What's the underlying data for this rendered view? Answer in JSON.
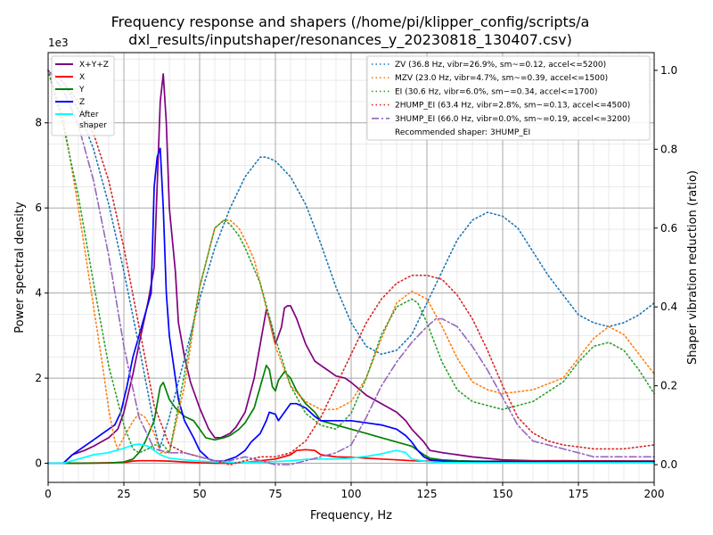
{
  "chart_data": {
    "type": "line",
    "title": "Frequency response and shapers (/home/pi/klipper_config/scripts/a\ndxl_results/inputshaper/resonances_y_20230818_130407.csv)",
    "title_lines": [
      "Frequency response and shapers (/home/pi/klipper_config/scripts/a",
      "dxl_results/inputshaper/resonances_y_20230818_130407.csv)"
    ],
    "xlabel": "Frequency, Hz",
    "ylabel": "Power spectral density",
    "y2label": "Shaper vibration reduction (ratio)",
    "y_offset_text": "1e3",
    "xlim": [
      0,
      200
    ],
    "ylim": [
      -450,
      9650
    ],
    "y2lim": [
      -0.045,
      1.045
    ],
    "x_ticks": [
      0,
      25,
      50,
      75,
      100,
      125,
      150,
      175,
      200
    ],
    "y_ticks": [
      0,
      2000,
      4000,
      6000,
      8000
    ],
    "y_tick_labels": [
      "0",
      "2",
      "4",
      "6",
      "8"
    ],
    "y2_ticks": [
      0.0,
      0.2,
      0.4,
      0.6,
      0.8,
      1.0
    ],
    "y2_tick_labels": [
      "0.0",
      "0.2",
      "0.4",
      "0.6",
      "0.8",
      "1.0"
    ],
    "grid": true,
    "legend_left": {
      "placement": "top-left",
      "entries": [
        {
          "label": "X+Y+Z",
          "color": "#800080"
        },
        {
          "label": "X",
          "color": "#ff0000"
        },
        {
          "label": "Y",
          "color": "#008000"
        },
        {
          "label": "Z",
          "color": "#0000ff"
        },
        {
          "label": "After\nshaper",
          "label_lines": [
            "After",
            "shaper"
          ],
          "color": "#00ffff"
        }
      ]
    },
    "legend_right": {
      "placement": "top-right",
      "entries": [
        {
          "label": "ZV (36.8 Hz, vibr=26.9%, sm~=0.12, accel<=5200)",
          "color": "#1f77b4",
          "dash": "dotted"
        },
        {
          "label": "MZV (23.0 Hz, vibr=4.7%, sm~=0.39, accel<=1500)",
          "color": "#ff7f0e",
          "dash": "dotted"
        },
        {
          "label": "EI (30.6 Hz, vibr=6.0%, sm~=0.34, accel<=1700)",
          "color": "#2ca02c",
          "dash": "dotted"
        },
        {
          "label": "2HUMP_EI (63.4 Hz, vibr=2.8%, sm~=0.13, accel<=4500)",
          "color": "#d62728",
          "dash": "dotted"
        },
        {
          "label": "3HUMP_EI (66.0 Hz, vibr=0.0%, sm~=0.19, accel<=3200)",
          "color": "#9467bd",
          "dash": "dashdot"
        },
        {
          "label": "Recommended shaper: 3HUMP_EI",
          "color": "",
          "dash": "none"
        }
      ]
    },
    "series": [
      {
        "name": "X+Y+Z",
        "color": "#800080",
        "axis": "left",
        "x": [
          0,
          5,
          8,
          12,
          15,
          20,
          23,
          25,
          28,
          30,
          33,
          35,
          37,
          38,
          39,
          40,
          42,
          43,
          45,
          47,
          50,
          53,
          55,
          57,
          60,
          62,
          65,
          68,
          70,
          72,
          73,
          75,
          77,
          78,
          79,
          80,
          82,
          85,
          88,
          90,
          92,
          95,
          98,
          100,
          105,
          110,
          115,
          118,
          120,
          122,
          124,
          126,
          130,
          135,
          140,
          150,
          160,
          170,
          180,
          190,
          200
        ],
        "y": [
          0,
          0,
          200,
          300,
          400,
          600,
          800,
          1200,
          2100,
          2800,
          3800,
          4600,
          8500,
          9150,
          8000,
          6000,
          4500,
          3300,
          2500,
          1900,
          1300,
          800,
          600,
          600,
          700,
          850,
          1200,
          2000,
          2800,
          3600,
          3400,
          2800,
          3200,
          3650,
          3700,
          3700,
          3400,
          2800,
          2400,
          2300,
          2200,
          2050,
          2000,
          1900,
          1600,
          1400,
          1200,
          1000,
          800,
          650,
          500,
          300,
          250,
          200,
          150,
          80,
          60,
          60,
          50,
          50,
          50
        ]
      },
      {
        "name": "X",
        "color": "#ff0000",
        "axis": "left",
        "x": [
          0,
          10,
          20,
          25,
          28,
          30,
          35,
          40,
          45,
          50,
          55,
          60,
          65,
          70,
          75,
          80,
          82,
          85,
          88,
          90,
          95,
          100,
          105,
          110,
          115,
          120,
          125,
          130,
          135,
          150,
          170,
          200
        ],
        "y": [
          0,
          0,
          10,
          20,
          50,
          60,
          60,
          50,
          30,
          10,
          0,
          0,
          20,
          60,
          100,
          200,
          300,
          320,
          300,
          200,
          150,
          140,
          120,
          100,
          80,
          60,
          50,
          40,
          40,
          50,
          60,
          50
        ]
      },
      {
        "name": "Y",
        "color": "#008000",
        "axis": "left",
        "x": [
          0,
          10,
          20,
          25,
          28,
          30,
          32,
          35,
          37,
          38,
          39,
          40,
          42,
          45,
          48,
          50,
          52,
          55,
          58,
          60,
          63,
          65,
          68,
          70,
          72,
          73,
          74,
          75,
          76,
          78,
          80,
          82,
          85,
          88,
          90,
          95,
          100,
          105,
          110,
          115,
          120,
          122,
          124,
          126,
          130,
          135,
          140,
          150,
          170,
          200
        ],
        "y": [
          0,
          0,
          5,
          30,
          100,
          250,
          500,
          1000,
          1800,
          1900,
          1700,
          1500,
          1300,
          1100,
          1000,
          800,
          600,
          550,
          600,
          650,
          800,
          950,
          1300,
          1800,
          2300,
          2200,
          1800,
          1700,
          1950,
          2150,
          2000,
          1700,
          1400,
          1200,
          1000,
          900,
          800,
          700,
          600,
          500,
          400,
          300,
          200,
          120,
          80,
          60,
          50,
          40,
          40,
          40
        ]
      },
      {
        "name": "Z",
        "color": "#0000ff",
        "axis": "left",
        "x": [
          0,
          5,
          8,
          12,
          15,
          18,
          20,
          22,
          24,
          26,
          28,
          30,
          32,
          34,
          35,
          36,
          37,
          38,
          39,
          40,
          41,
          42,
          43,
          45,
          48,
          50,
          53,
          55,
          58,
          60,
          62,
          65,
          67,
          70,
          72,
          73,
          75,
          76,
          78,
          80,
          82,
          85,
          88,
          90,
          95,
          100,
          105,
          110,
          115,
          118,
          120,
          122,
          124,
          126,
          130,
          135,
          140,
          150,
          160,
          170,
          180,
          190,
          200
        ],
        "y": [
          0,
          0,
          200,
          400,
          550,
          700,
          800,
          900,
          1200,
          1800,
          2500,
          3000,
          3500,
          4000,
          6500,
          7200,
          7400,
          6000,
          4000,
          3000,
          2500,
          2000,
          1500,
          1000,
          600,
          300,
          100,
          50,
          50,
          100,
          150,
          300,
          500,
          700,
          1000,
          1200,
          1150,
          1000,
          1200,
          1400,
          1400,
          1300,
          1100,
          1000,
          1000,
          1000,
          950,
          900,
          800,
          650,
          500,
          300,
          150,
          80,
          50,
          40,
          40,
          40,
          40,
          40,
          40,
          40,
          40
        ]
      },
      {
        "name": "After\nshaper",
        "color": "#00ffff",
        "axis": "left",
        "x": [
          0,
          5,
          10,
          15,
          20,
          25,
          28,
          30,
          33,
          35,
          37,
          40,
          45,
          50,
          55,
          60,
          65,
          70,
          75,
          80,
          85,
          90,
          95,
          100,
          105,
          110,
          113,
          115,
          118,
          120,
          125,
          130,
          140,
          160,
          200
        ],
        "y": [
          0,
          0,
          100,
          200,
          250,
          350,
          430,
          450,
          400,
          300,
          200,
          120,
          80,
          50,
          30,
          20,
          20,
          30,
          40,
          60,
          90,
          100,
          100,
          120,
          160,
          220,
          270,
          300,
          250,
          100,
          40,
          20,
          10,
          10,
          10
        ]
      },
      {
        "name": "ZV (36.8 Hz, vibr=26.9%, sm~=0.12, accel<=5200)",
        "color": "#1f77b4",
        "dash": "dotted",
        "axis": "right",
        "x": [
          0,
          5,
          10,
          15,
          20,
          25,
          30,
          35,
          36.8,
          40,
          45,
          50,
          55,
          60,
          65,
          70,
          72,
          75,
          80,
          85,
          90,
          95,
          100,
          105,
          110,
          115,
          120,
          125,
          130,
          135,
          140,
          145,
          150,
          155,
          160,
          165,
          170,
          175,
          180,
          185,
          190,
          195,
          200
        ],
        "y": [
          1.0,
          0.97,
          0.9,
          0.8,
          0.66,
          0.49,
          0.3,
          0.1,
          0.04,
          0.12,
          0.27,
          0.42,
          0.55,
          0.65,
          0.73,
          0.78,
          0.78,
          0.77,
          0.73,
          0.66,
          0.56,
          0.45,
          0.36,
          0.3,
          0.28,
          0.29,
          0.33,
          0.41,
          0.49,
          0.57,
          0.62,
          0.64,
          0.63,
          0.6,
          0.54,
          0.48,
          0.43,
          0.38,
          0.36,
          0.35,
          0.36,
          0.38,
          0.41
        ]
      },
      {
        "name": "MZV (23.0 Hz, vibr=4.7%, sm~=0.39, accel<=1500)",
        "color": "#ff7f0e",
        "dash": "dotted",
        "axis": "right",
        "x": [
          0,
          5,
          10,
          15,
          18,
          20,
          22,
          23,
          25,
          28,
          30,
          32,
          35,
          37,
          40,
          45,
          50,
          55,
          58,
          60,
          63,
          65,
          68,
          70,
          75,
          80,
          85,
          90,
          95,
          100,
          105,
          110,
          115,
          120,
          125,
          130,
          135,
          140,
          145,
          150,
          160,
          170,
          175,
          180,
          185,
          190,
          195,
          200
        ],
        "y": [
          1.0,
          0.88,
          0.65,
          0.4,
          0.25,
          0.14,
          0.06,
          0.04,
          0.07,
          0.11,
          0.13,
          0.12,
          0.08,
          0.03,
          0.03,
          0.2,
          0.45,
          0.6,
          0.62,
          0.62,
          0.6,
          0.57,
          0.52,
          0.46,
          0.3,
          0.2,
          0.16,
          0.14,
          0.14,
          0.16,
          0.22,
          0.32,
          0.41,
          0.44,
          0.42,
          0.35,
          0.27,
          0.21,
          0.19,
          0.18,
          0.19,
          0.22,
          0.27,
          0.32,
          0.35,
          0.33,
          0.28,
          0.23
        ]
      },
      {
        "name": "EI (30.6 Hz, vibr=6.0%, sm~=0.34, accel<=1700)",
        "color": "#2ca02c",
        "dash": "dotted",
        "axis": "right",
        "x": [
          0,
          5,
          10,
          15,
          20,
          25,
          28,
          30,
          33,
          35,
          38,
          40,
          45,
          50,
          55,
          58,
          60,
          63,
          65,
          70,
          75,
          80,
          85,
          90,
          95,
          100,
          105,
          110,
          115,
          120,
          122,
          125,
          130,
          135,
          140,
          145,
          150,
          160,
          170,
          175,
          180,
          185,
          190,
          195,
          200
        ],
        "y": [
          1.0,
          0.86,
          0.68,
          0.46,
          0.25,
          0.1,
          0.04,
          0.03,
          0.04,
          0.05,
          0.05,
          0.03,
          0.23,
          0.45,
          0.6,
          0.62,
          0.61,
          0.58,
          0.55,
          0.46,
          0.32,
          0.2,
          0.13,
          0.1,
          0.09,
          0.13,
          0.22,
          0.33,
          0.4,
          0.42,
          0.41,
          0.36,
          0.26,
          0.19,
          0.16,
          0.15,
          0.14,
          0.16,
          0.21,
          0.26,
          0.3,
          0.31,
          0.29,
          0.24,
          0.18
        ]
      },
      {
        "name": "2HUMP_EI (63.4 Hz, vibr=2.8%, sm~=0.13, accel<=4500)",
        "color": "#d62728",
        "dash": "dotted",
        "axis": "right",
        "x": [
          0,
          5,
          10,
          15,
          20,
          25,
          30,
          35,
          40,
          45,
          50,
          55,
          60,
          65,
          70,
          75,
          80,
          85,
          90,
          95,
          100,
          105,
          110,
          115,
          120,
          125,
          130,
          135,
          140,
          145,
          150,
          155,
          160,
          165,
          170,
          180,
          190,
          200
        ],
        "y": [
          1.0,
          0.97,
          0.92,
          0.84,
          0.72,
          0.55,
          0.35,
          0.15,
          0.05,
          0.03,
          0.02,
          0.01,
          0.0,
          0.01,
          0.02,
          0.02,
          0.03,
          0.06,
          0.12,
          0.2,
          0.28,
          0.36,
          0.42,
          0.46,
          0.48,
          0.48,
          0.47,
          0.43,
          0.37,
          0.29,
          0.2,
          0.12,
          0.08,
          0.06,
          0.05,
          0.04,
          0.04,
          0.05
        ]
      },
      {
        "name": "3HUMP_EI (66.0 Hz, vibr=0.0%, sm~=0.19, accel<=3200)",
        "color": "#9467bd",
        "dash": "dashdot",
        "axis": "right",
        "x": [
          0,
          5,
          10,
          15,
          20,
          25,
          30,
          35,
          40,
          45,
          50,
          55,
          60,
          65,
          70,
          75,
          80,
          85,
          90,
          95,
          100,
          105,
          110,
          115,
          120,
          125,
          128,
          130,
          135,
          140,
          145,
          150,
          155,
          160,
          165,
          170,
          175,
          180,
          190,
          200
        ],
        "y": [
          1.0,
          0.95,
          0.86,
          0.72,
          0.53,
          0.3,
          0.12,
          0.04,
          0.03,
          0.03,
          0.02,
          0.01,
          0.01,
          0.02,
          0.01,
          0.0,
          0.0,
          0.01,
          0.02,
          0.03,
          0.05,
          0.12,
          0.2,
          0.26,
          0.31,
          0.35,
          0.37,
          0.37,
          0.35,
          0.3,
          0.24,
          0.17,
          0.1,
          0.06,
          0.05,
          0.04,
          0.03,
          0.02,
          0.02,
          0.02
        ]
      }
    ]
  }
}
